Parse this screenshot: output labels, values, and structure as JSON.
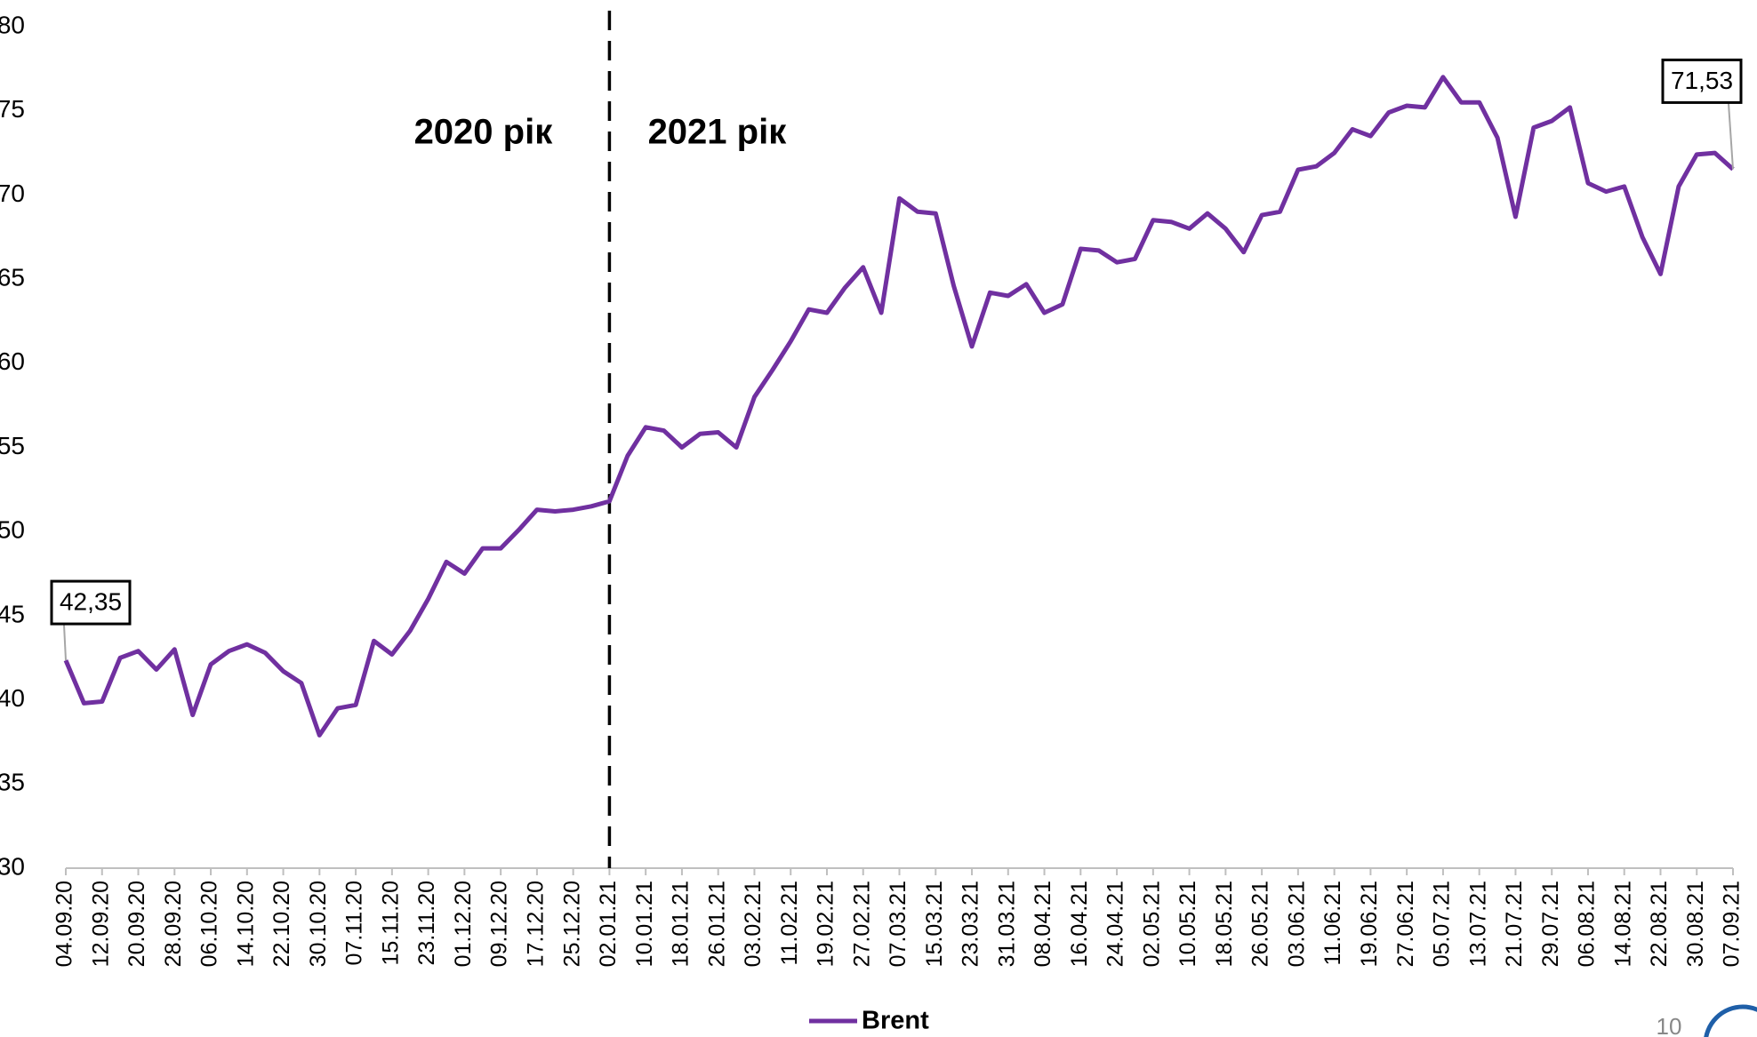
{
  "chart_data": {
    "type": "line",
    "categories": [
      "04.09.20",
      null,
      "12.09.20",
      null,
      "20.09.20",
      null,
      "28.09.20",
      null,
      "06.10.20",
      null,
      "14.10.20",
      null,
      "22.10.20",
      null,
      "30.10.20",
      null,
      "07.11.20",
      null,
      "15.11.20",
      null,
      "23.11.20",
      null,
      "01.12.20",
      null,
      "09.12.20",
      null,
      "17.12.20",
      null,
      "25.12.20",
      null,
      "02.01.21",
      null,
      "10.01.21",
      null,
      "18.01.21",
      null,
      "26.01.21",
      null,
      "03.02.21",
      null,
      "11.02.21",
      null,
      "19.02.21",
      null,
      "27.02.21",
      null,
      "07.03.21",
      null,
      "15.03.21",
      null,
      "23.03.21",
      null,
      "31.03.21",
      null,
      "08.04.21",
      null,
      "16.04.21",
      null,
      "24.04.21",
      null,
      "02.05.21",
      null,
      "10.05.21",
      null,
      "18.05.21",
      null,
      "26.05.21",
      null,
      "03.06.21",
      null,
      "11.06.21",
      null,
      "19.06.21",
      null,
      "27.06.21",
      null,
      "05.07.21",
      null,
      "13.07.21",
      null,
      "21.07.21",
      null,
      "29.07.21",
      null,
      "06.08.21",
      null,
      "14.08.21",
      null,
      "22.08.21",
      null,
      "30.08.21",
      null,
      "07.09.21"
    ],
    "series": [
      {
        "name": "Brent",
        "color": "#7030a0",
        "values": [
          42.35,
          39.8,
          39.9,
          42.5,
          42.9,
          41.8,
          43.0,
          39.1,
          42.1,
          42.9,
          43.3,
          42.8,
          41.7,
          41.0,
          37.9,
          39.5,
          39.7,
          43.5,
          42.7,
          44.1,
          46.0,
          48.2,
          47.5,
          49.0,
          49.0,
          50.1,
          51.3,
          51.2,
          51.3,
          51.5,
          51.8,
          54.5,
          56.2,
          56.0,
          55.0,
          55.8,
          55.9,
          55.0,
          58.0,
          59.6,
          61.3,
          63.2,
          63.0,
          64.5,
          65.7,
          63.0,
          69.8,
          69.0,
          68.9,
          64.6,
          61.0,
          64.2,
          64.0,
          64.7,
          63.0,
          63.5,
          66.8,
          66.7,
          66.0,
          66.2,
          68.5,
          68.4,
          68.0,
          68.9,
          68.0,
          66.6,
          68.8,
          69.0,
          71.5,
          71.7,
          72.5,
          73.9,
          73.5,
          74.9,
          75.3,
          75.2,
          77.0,
          75.5,
          75.5,
          73.4,
          68.7,
          74.0,
          74.4,
          75.2,
          70.7,
          70.2,
          70.5,
          67.5,
          65.3,
          70.5,
          72.4,
          72.5,
          71.53
        ],
        "value_labels": [
          "42,35",
          null,
          null,
          null,
          null,
          null,
          null,
          null,
          null,
          null,
          null,
          null,
          null,
          null,
          null,
          null,
          null,
          null,
          null,
          null,
          null,
          null,
          null,
          null,
          null,
          null,
          null,
          null,
          null,
          null,
          null,
          null,
          null,
          null,
          null,
          null,
          null,
          null,
          null,
          null,
          null,
          null,
          null,
          null,
          null,
          null,
          null,
          null,
          null,
          null,
          null,
          null,
          null,
          null,
          null,
          null,
          null,
          null,
          null,
          null,
          null,
          null,
          null,
          null,
          null,
          null,
          null,
          null,
          null,
          null,
          null,
          null,
          null,
          null,
          null,
          null,
          null,
          null,
          null,
          null,
          null,
          null,
          null,
          null,
          null,
          null,
          null,
          null,
          null,
          null,
          null,
          null,
          "71,53"
        ]
      }
    ],
    "ylim": [
      30,
      80
    ],
    "yticks": [
      30,
      35,
      40,
      45,
      50,
      55,
      60,
      65,
      70,
      75,
      80
    ],
    "grid": false,
    "divider_category": "02.01.21",
    "annotations": [
      "2020 рік",
      "2021 рік"
    ],
    "legend": "bottom"
  },
  "page_number": "10"
}
